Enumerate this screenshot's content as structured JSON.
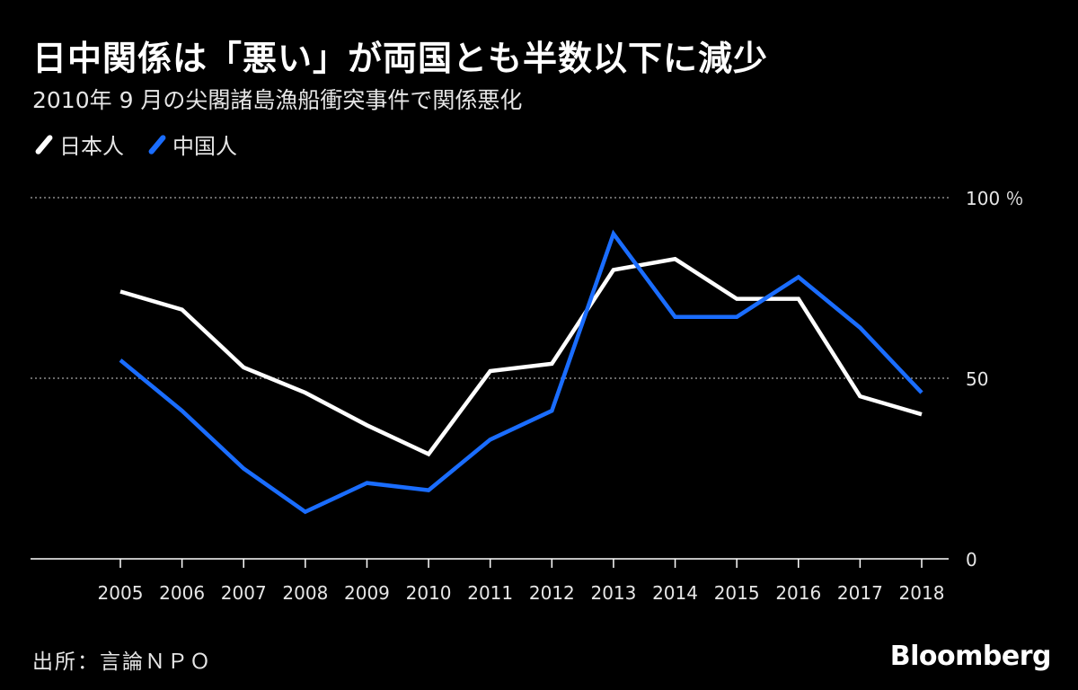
{
  "title": "日中関係は「悪い」が両国とも半数以下に減少",
  "subtitle": "2010年 9 月の尖閣諸島漁船衝突事件で関係悪化",
  "legend": [
    {
      "label": "日本人",
      "color": "#ffffff"
    },
    {
      "label": "中国人",
      "color": "#1a6dff"
    }
  ],
  "footer": {
    "source": "出所：言論ＮＰＯ",
    "brand": "Bloomberg"
  },
  "chart_data": {
    "type": "line",
    "title": "日中関係は「悪い」が両国とも半数以下に減少",
    "subtitle": "2010年 9 月の尖閣諸島漁船衝突事件で関係悪化",
    "xlabel": "",
    "ylabel": "%",
    "ylim": [
      0,
      100
    ],
    "yticks": [
      0,
      50,
      100
    ],
    "ytick_labels": [
      "0",
      "50",
      "100 ％"
    ],
    "grid": "horizontal dotted",
    "legend_position": "top-left",
    "x": [
      "2005",
      "2006",
      "2007",
      "2008",
      "2009",
      "2010",
      "2011",
      "2012",
      "2013",
      "2014",
      "2015",
      "2016",
      "2017",
      "2018"
    ],
    "series": [
      {
        "name": "日本人",
        "color": "#ffffff",
        "values": [
          74,
          69,
          53,
          46,
          37,
          29,
          52,
          54,
          80,
          83,
          72,
          72,
          45,
          40
        ]
      },
      {
        "name": "中国人",
        "color": "#1a6dff",
        "values": [
          55,
          41,
          25,
          13,
          21,
          19,
          33,
          41,
          90,
          67,
          67,
          78,
          64,
          46
        ]
      }
    ]
  }
}
